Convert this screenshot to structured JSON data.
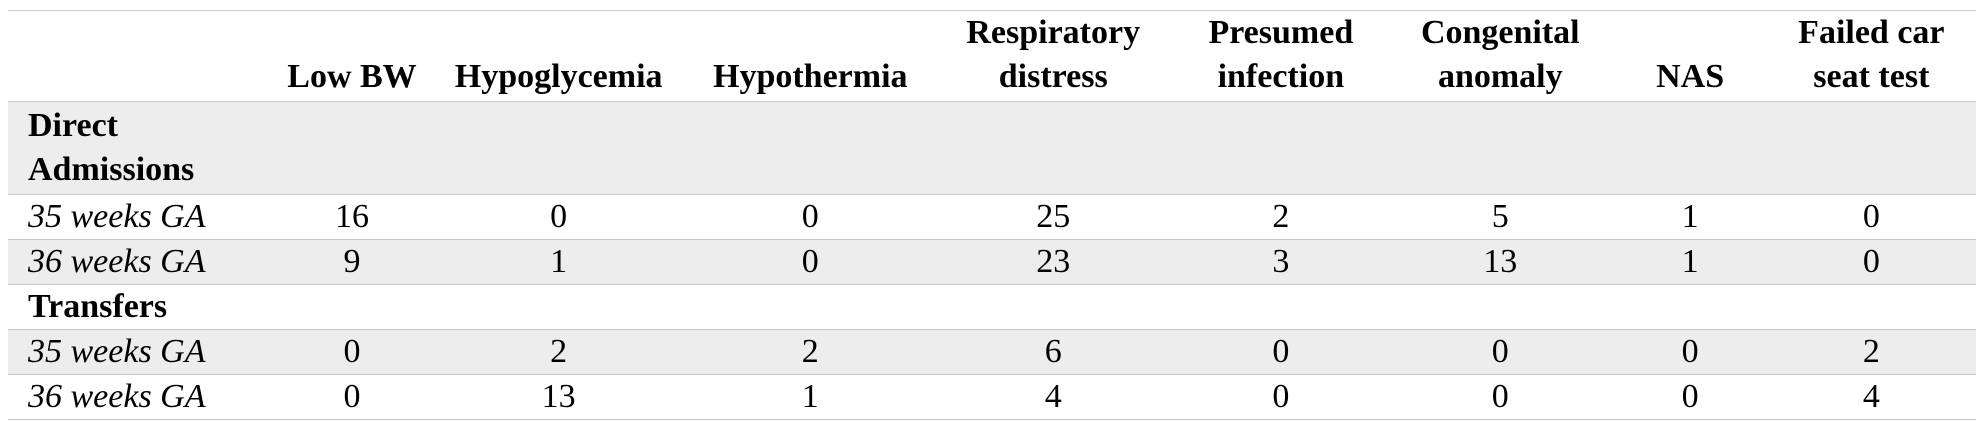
{
  "table": {
    "headers": [
      "",
      "Low BW",
      "Hypoglycemia",
      "Hypothermia",
      "Respiratory distress",
      "Presumed infection",
      "Congenital anomaly",
      "NAS",
      "Failed car seat test"
    ],
    "groups": [
      {
        "label": "Direct Admissions",
        "rows": [
          {
            "label": "35 weeks GA",
            "values": [
              "16",
              "0",
              "0",
              "25",
              "2",
              "5",
              "1",
              "0"
            ]
          },
          {
            "label": "36 weeks GA",
            "values": [
              "9",
              "1",
              "0",
              "23",
              "3",
              "13",
              "1",
              "0"
            ]
          }
        ]
      },
      {
        "label": "Transfers",
        "rows": [
          {
            "label": "35 weeks GA",
            "values": [
              "0",
              "2",
              "2",
              "6",
              "0",
              "0",
              "0",
              "2"
            ]
          },
          {
            "label": "36 weeks GA",
            "values": [
              "0",
              "13",
              "1",
              "4",
              "0",
              "0",
              "0",
              "4"
            ]
          }
        ]
      }
    ]
  }
}
